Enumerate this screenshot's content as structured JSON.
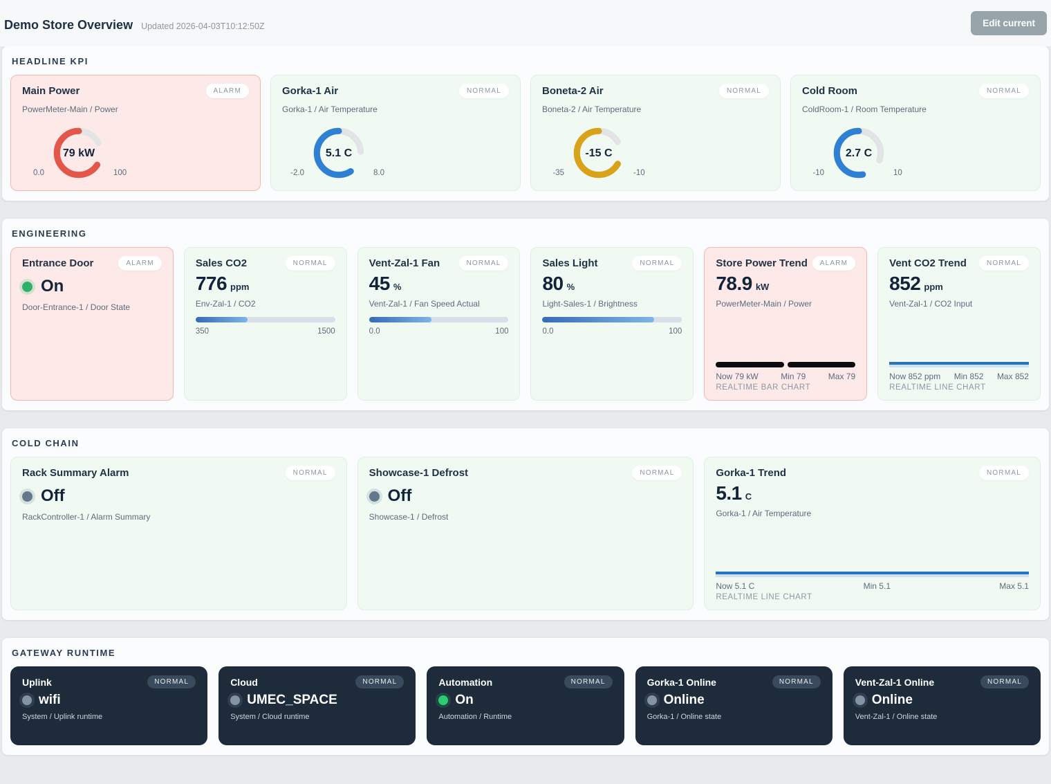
{
  "header": {
    "title": "Demo Store Overview",
    "updated": "Updated 2026-04-03T10:12:50Z",
    "edit_button": "Edit current"
  },
  "theme": {
    "alarm_bg": "#fdeae8",
    "alarm_border": "#f3b7ae",
    "normal_bg": "#f0faf3",
    "normal_border": "#ddf0e3",
    "dark_bg": "#1d2b3b",
    "bar_fill_start": "#326cb4",
    "bar_fill_end": "#7fb5e6",
    "line_color": "#2473c5",
    "bar_chart_color": "#0b0d10"
  },
  "sections": {
    "kpi": {
      "label": "HEADLINE KPI",
      "cards": [
        {
          "title": "Main Power",
          "status": "ALARM",
          "tone": "alarm",
          "sub": "PowerMeter-Main / Power",
          "value_label": "79 kW",
          "min_label": "0.0",
          "max_label": "100",
          "gauge": {
            "min": 0,
            "max": 100,
            "value": 79,
            "color": "#e2574a"
          }
        },
        {
          "title": "Gorka-1 Air",
          "status": "NORMAL",
          "tone": "normal",
          "sub": "Gorka-1 / Air Temperature",
          "value_label": "5.1 C",
          "min_label": "-2.0",
          "max_label": "8.0",
          "gauge": {
            "min": -2,
            "max": 8,
            "value": 5.1,
            "color": "#2f7fd3"
          }
        },
        {
          "title": "Boneta-2 Air",
          "status": "NORMAL",
          "tone": "normal",
          "sub": "Boneta-2 / Air Temperature",
          "value_label": "-15 C",
          "min_label": "-35",
          "max_label": "-10",
          "gauge": {
            "min": -35,
            "max": -10,
            "value": -15,
            "color": "#d9a21b"
          }
        },
        {
          "title": "Cold Room",
          "status": "NORMAL",
          "tone": "normal",
          "sub": "ColdRoom-1 / Room Temperature",
          "value_label": "2.7 C",
          "min_label": "-10",
          "max_label": "10",
          "gauge": {
            "min": -10,
            "max": 10,
            "value": 2.7,
            "color": "#2f7fd3"
          }
        }
      ]
    },
    "engineering": {
      "label": "ENGINEERING",
      "cards": [
        {
          "title": "Entrance Door",
          "status": "ALARM",
          "tone": "alarm",
          "value": "On",
          "dot": "#2eb06a",
          "sub": "Door-Entrance-1 / Door State"
        },
        {
          "title": "Sales CO2",
          "status": "NORMAL",
          "tone": "normal",
          "value": "776",
          "unit": "ppm",
          "sub": "Env-Zal-1 / CO2",
          "min_label": "350",
          "max_label": "1500",
          "bar": {
            "min": 350,
            "max": 1500,
            "value": 776
          }
        },
        {
          "title": "Vent-Zal-1 Fan",
          "status": "NORMAL",
          "tone": "normal",
          "value": "45",
          "unit": "%",
          "sub": "Vent-Zal-1 / Fan Speed Actual",
          "min_label": "0.0",
          "max_label": "100",
          "bar": {
            "min": 0,
            "max": 100,
            "value": 45
          }
        },
        {
          "title": "Sales Light",
          "status": "NORMAL",
          "tone": "normal",
          "value": "80",
          "unit": "%",
          "sub": "Light-Sales-1 / Brightness",
          "min_label": "0.0",
          "max_label": "100",
          "bar": {
            "min": 0,
            "max": 100,
            "value": 80
          }
        },
        {
          "title": "Store Power Trend",
          "status": "ALARM",
          "tone": "alarm",
          "value": "78.9",
          "unit": "kW",
          "sub": "PowerMeter-Main / Power",
          "chart_type": "bar",
          "now": "Now 79 kW",
          "min": "Min 79",
          "max": "Max 79",
          "caption": "REALTIME BAR CHART"
        },
        {
          "title": "Vent CO2 Trend",
          "status": "NORMAL",
          "tone": "normal",
          "value": "852",
          "unit": "ppm",
          "sub": "Vent-Zal-1 / CO2 Input",
          "chart_type": "line",
          "now": "Now 852 ppm",
          "min": "Min 852",
          "max": "Max 852",
          "caption": "REALTIME LINE CHART"
        }
      ]
    },
    "cold_chain": {
      "label": "COLD CHAIN",
      "cards": [
        {
          "title": "Rack Summary Alarm",
          "status": "NORMAL",
          "tone": "normal",
          "value": "Off",
          "dot": "#64788c",
          "sub": "RackController-1 / Alarm Summary"
        },
        {
          "title": "Showcase-1 Defrost",
          "status": "NORMAL",
          "tone": "normal",
          "value": "Off",
          "dot": "#64788c",
          "sub": "Showcase-1 / Defrost"
        },
        {
          "title": "Gorka-1 Trend",
          "status": "NORMAL",
          "tone": "normal",
          "value": "5.1",
          "unit": "C",
          "sub": "Gorka-1 / Air Temperature",
          "chart_type": "line",
          "now": "Now 5.1 C",
          "min": "Min 5.1",
          "max": "Max 5.1",
          "caption": "REALTIME LINE CHART"
        }
      ]
    },
    "gateway": {
      "label": "GATEWAY RUNTIME",
      "cards": [
        {
          "title": "Uplink",
          "status": "NORMAL",
          "value": "wifi",
          "dot": "#8493a5",
          "sub": "System / Uplink runtime"
        },
        {
          "title": "Cloud",
          "status": "NORMAL",
          "value": "UMEC_SPACE",
          "dot": "#8493a5",
          "sub": "System / Cloud runtime"
        },
        {
          "title": "Automation",
          "status": "NORMAL",
          "value": "On",
          "dot": "#2ecc71",
          "sub": "Automation / Runtime"
        },
        {
          "title": "Gorka-1 Online",
          "status": "NORMAL",
          "value": "Online",
          "dot": "#8493a5",
          "sub": "Gorka-1 / Online state"
        },
        {
          "title": "Vent-Zal-1 Online",
          "status": "NORMAL",
          "value": "Online",
          "dot": "#8493a5",
          "sub": "Vent-Zal-1 / Online state"
        }
      ]
    }
  }
}
